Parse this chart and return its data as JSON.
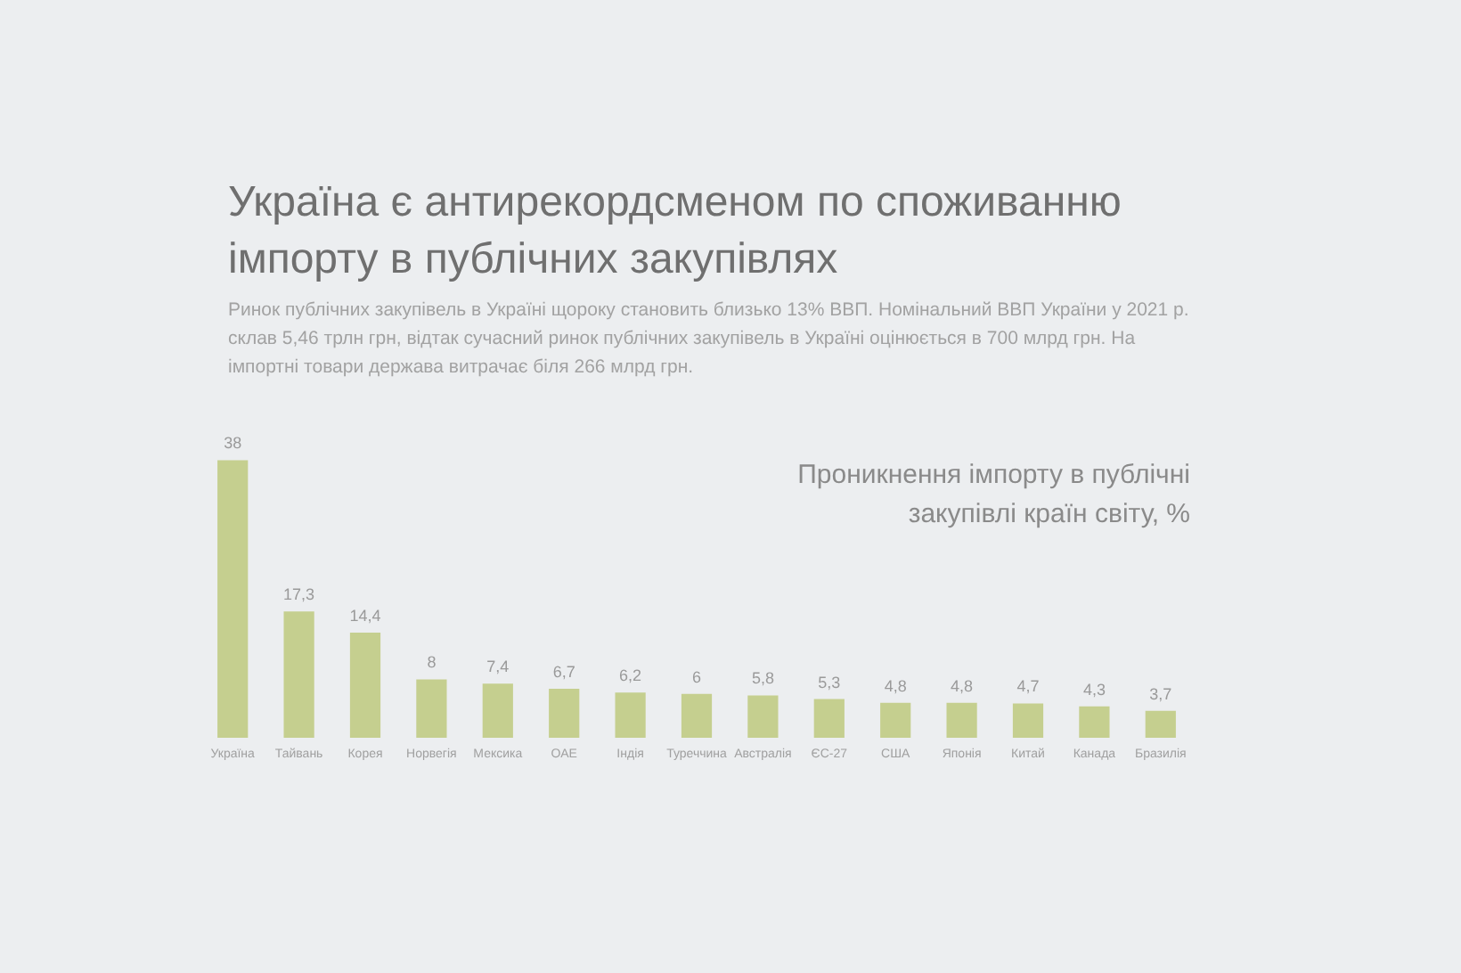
{
  "chart_data": {
    "type": "bar",
    "title": "Україна є антирекордсменом по споживанню імпорту в публічних закупівлях",
    "subtitle": "Ринок публічних закупівель в Україні щороку становить близько 13% ВВП. Номінальний ВВП України у 2021 р. склав 5,46 трлн грн, відтак сучасний ринок публічних закупівель в Україні оцінюється в 700 млрд грн. На імпортні товари держава витрачає біля 266 млрд грн.",
    "annotations": [
      "Проникнення імпорту в публічні закупівлі країн світу, %"
    ],
    "categories": [
      "Україна",
      "Тайвань",
      "Корея",
      "Норвегія",
      "Мексика",
      "ОАЕ",
      "Індія",
      "Туреччина",
      "Австралія",
      "ЄС-27",
      "США",
      "Японія",
      "Китай",
      "Канада",
      "Бразилія"
    ],
    "values": [
      38,
      17.3,
      14.4,
      8,
      7.4,
      6.7,
      6.2,
      6,
      5.8,
      5.3,
      4.8,
      4.8,
      4.7,
      4.3,
      3.7
    ],
    "value_labels": [
      "38",
      "17,3",
      "14,4",
      "8",
      "7,4",
      "6,7",
      "6,2",
      "6",
      "5,8",
      "5,3",
      "4,8",
      "4,8",
      "4,7",
      "4,3",
      "3,7"
    ],
    "color": "#c5cf8f"
  }
}
